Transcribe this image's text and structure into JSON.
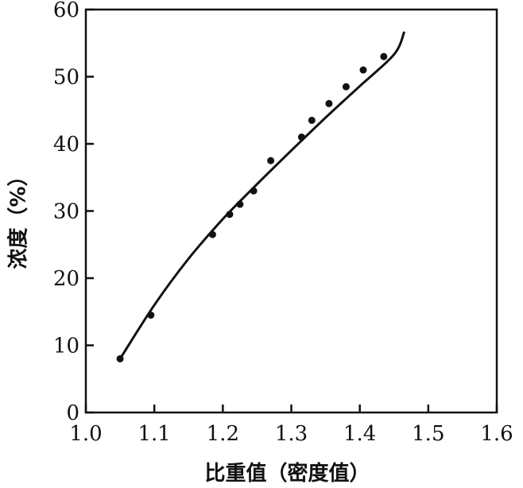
{
  "chart_data": {
    "type": "scatter",
    "xlabel": "比重值（密度值）",
    "ylabel": "浓度（%）",
    "xlim": [
      1.0,
      1.6
    ],
    "ylim": [
      0,
      60
    ],
    "x_ticks": [
      "1.0",
      "1.1",
      "1.2",
      "1.3",
      "1.4",
      "1.5",
      "1.6"
    ],
    "y_ticks": [
      "0",
      "10",
      "20",
      "30",
      "40",
      "50",
      "60"
    ],
    "grid": false,
    "legend": "none",
    "points": {
      "x": [
        1.05,
        1.095,
        1.185,
        1.21,
        1.225,
        1.245,
        1.27,
        1.315,
        1.33,
        1.355,
        1.38,
        1.405,
        1.435
      ],
      "y": [
        8.0,
        14.5,
        26.5,
        29.5,
        31.0,
        33.0,
        37.5,
        41.0,
        43.5,
        46.0,
        48.5,
        51.0,
        53.0
      ]
    },
    "fit_curve": {
      "x": [
        1.05,
        1.1,
        1.15,
        1.2,
        1.25,
        1.3,
        1.35,
        1.4,
        1.45,
        1.465
      ],
      "y": [
        8.0,
        16.0,
        22.9,
        28.8,
        34.0,
        39.0,
        43.9,
        48.6,
        53.3,
        56.7
      ]
    },
    "colors": {
      "ink": "#111111",
      "background": "#ffffff"
    }
  }
}
